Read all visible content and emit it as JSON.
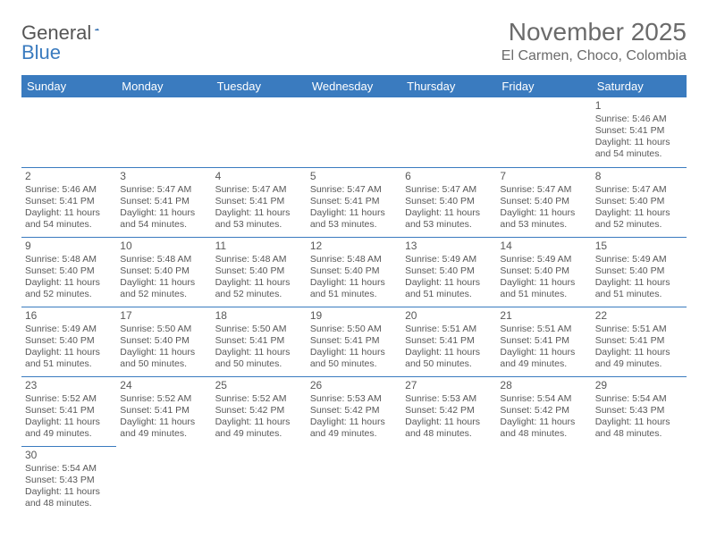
{
  "logo": {
    "text1": "General",
    "text2": "Blue"
  },
  "title": "November 2025",
  "location": "El Carmen, Choco, Colombia",
  "colors": {
    "header_bg": "#3a7bbf",
    "header_text": "#ffffff",
    "border": "#3a7bbf",
    "body_text": "#585858",
    "title_text": "#6b6b6b",
    "page_bg": "#ffffff"
  },
  "day_headers": [
    "Sunday",
    "Monday",
    "Tuesday",
    "Wednesday",
    "Thursday",
    "Friday",
    "Saturday"
  ],
  "weeks": [
    [
      null,
      null,
      null,
      null,
      null,
      null,
      {
        "n": "1",
        "sr": "Sunrise: 5:46 AM",
        "ss": "Sunset: 5:41 PM",
        "dl": "Daylight: 11 hours and 54 minutes."
      }
    ],
    [
      {
        "n": "2",
        "sr": "Sunrise: 5:46 AM",
        "ss": "Sunset: 5:41 PM",
        "dl": "Daylight: 11 hours and 54 minutes."
      },
      {
        "n": "3",
        "sr": "Sunrise: 5:47 AM",
        "ss": "Sunset: 5:41 PM",
        "dl": "Daylight: 11 hours and 54 minutes."
      },
      {
        "n": "4",
        "sr": "Sunrise: 5:47 AM",
        "ss": "Sunset: 5:41 PM",
        "dl": "Daylight: 11 hours and 53 minutes."
      },
      {
        "n": "5",
        "sr": "Sunrise: 5:47 AM",
        "ss": "Sunset: 5:41 PM",
        "dl": "Daylight: 11 hours and 53 minutes."
      },
      {
        "n": "6",
        "sr": "Sunrise: 5:47 AM",
        "ss": "Sunset: 5:40 PM",
        "dl": "Daylight: 11 hours and 53 minutes."
      },
      {
        "n": "7",
        "sr": "Sunrise: 5:47 AM",
        "ss": "Sunset: 5:40 PM",
        "dl": "Daylight: 11 hours and 53 minutes."
      },
      {
        "n": "8",
        "sr": "Sunrise: 5:47 AM",
        "ss": "Sunset: 5:40 PM",
        "dl": "Daylight: 11 hours and 52 minutes."
      }
    ],
    [
      {
        "n": "9",
        "sr": "Sunrise: 5:48 AM",
        "ss": "Sunset: 5:40 PM",
        "dl": "Daylight: 11 hours and 52 minutes."
      },
      {
        "n": "10",
        "sr": "Sunrise: 5:48 AM",
        "ss": "Sunset: 5:40 PM",
        "dl": "Daylight: 11 hours and 52 minutes."
      },
      {
        "n": "11",
        "sr": "Sunrise: 5:48 AM",
        "ss": "Sunset: 5:40 PM",
        "dl": "Daylight: 11 hours and 52 minutes."
      },
      {
        "n": "12",
        "sr": "Sunrise: 5:48 AM",
        "ss": "Sunset: 5:40 PM",
        "dl": "Daylight: 11 hours and 51 minutes."
      },
      {
        "n": "13",
        "sr": "Sunrise: 5:49 AM",
        "ss": "Sunset: 5:40 PM",
        "dl": "Daylight: 11 hours and 51 minutes."
      },
      {
        "n": "14",
        "sr": "Sunrise: 5:49 AM",
        "ss": "Sunset: 5:40 PM",
        "dl": "Daylight: 11 hours and 51 minutes."
      },
      {
        "n": "15",
        "sr": "Sunrise: 5:49 AM",
        "ss": "Sunset: 5:40 PM",
        "dl": "Daylight: 11 hours and 51 minutes."
      }
    ],
    [
      {
        "n": "16",
        "sr": "Sunrise: 5:49 AM",
        "ss": "Sunset: 5:40 PM",
        "dl": "Daylight: 11 hours and 51 minutes."
      },
      {
        "n": "17",
        "sr": "Sunrise: 5:50 AM",
        "ss": "Sunset: 5:40 PM",
        "dl": "Daylight: 11 hours and 50 minutes."
      },
      {
        "n": "18",
        "sr": "Sunrise: 5:50 AM",
        "ss": "Sunset: 5:41 PM",
        "dl": "Daylight: 11 hours and 50 minutes."
      },
      {
        "n": "19",
        "sr": "Sunrise: 5:50 AM",
        "ss": "Sunset: 5:41 PM",
        "dl": "Daylight: 11 hours and 50 minutes."
      },
      {
        "n": "20",
        "sr": "Sunrise: 5:51 AM",
        "ss": "Sunset: 5:41 PM",
        "dl": "Daylight: 11 hours and 50 minutes."
      },
      {
        "n": "21",
        "sr": "Sunrise: 5:51 AM",
        "ss": "Sunset: 5:41 PM",
        "dl": "Daylight: 11 hours and 49 minutes."
      },
      {
        "n": "22",
        "sr": "Sunrise: 5:51 AM",
        "ss": "Sunset: 5:41 PM",
        "dl": "Daylight: 11 hours and 49 minutes."
      }
    ],
    [
      {
        "n": "23",
        "sr": "Sunrise: 5:52 AM",
        "ss": "Sunset: 5:41 PM",
        "dl": "Daylight: 11 hours and 49 minutes."
      },
      {
        "n": "24",
        "sr": "Sunrise: 5:52 AM",
        "ss": "Sunset: 5:41 PM",
        "dl": "Daylight: 11 hours and 49 minutes."
      },
      {
        "n": "25",
        "sr": "Sunrise: 5:52 AM",
        "ss": "Sunset: 5:42 PM",
        "dl": "Daylight: 11 hours and 49 minutes."
      },
      {
        "n": "26",
        "sr": "Sunrise: 5:53 AM",
        "ss": "Sunset: 5:42 PM",
        "dl": "Daylight: 11 hours and 49 minutes."
      },
      {
        "n": "27",
        "sr": "Sunrise: 5:53 AM",
        "ss": "Sunset: 5:42 PM",
        "dl": "Daylight: 11 hours and 48 minutes."
      },
      {
        "n": "28",
        "sr": "Sunrise: 5:54 AM",
        "ss": "Sunset: 5:42 PM",
        "dl": "Daylight: 11 hours and 48 minutes."
      },
      {
        "n": "29",
        "sr": "Sunrise: 5:54 AM",
        "ss": "Sunset: 5:43 PM",
        "dl": "Daylight: 11 hours and 48 minutes."
      }
    ],
    [
      {
        "n": "30",
        "sr": "Sunrise: 5:54 AM",
        "ss": "Sunset: 5:43 PM",
        "dl": "Daylight: 11 hours and 48 minutes."
      },
      null,
      null,
      null,
      null,
      null,
      null
    ]
  ]
}
